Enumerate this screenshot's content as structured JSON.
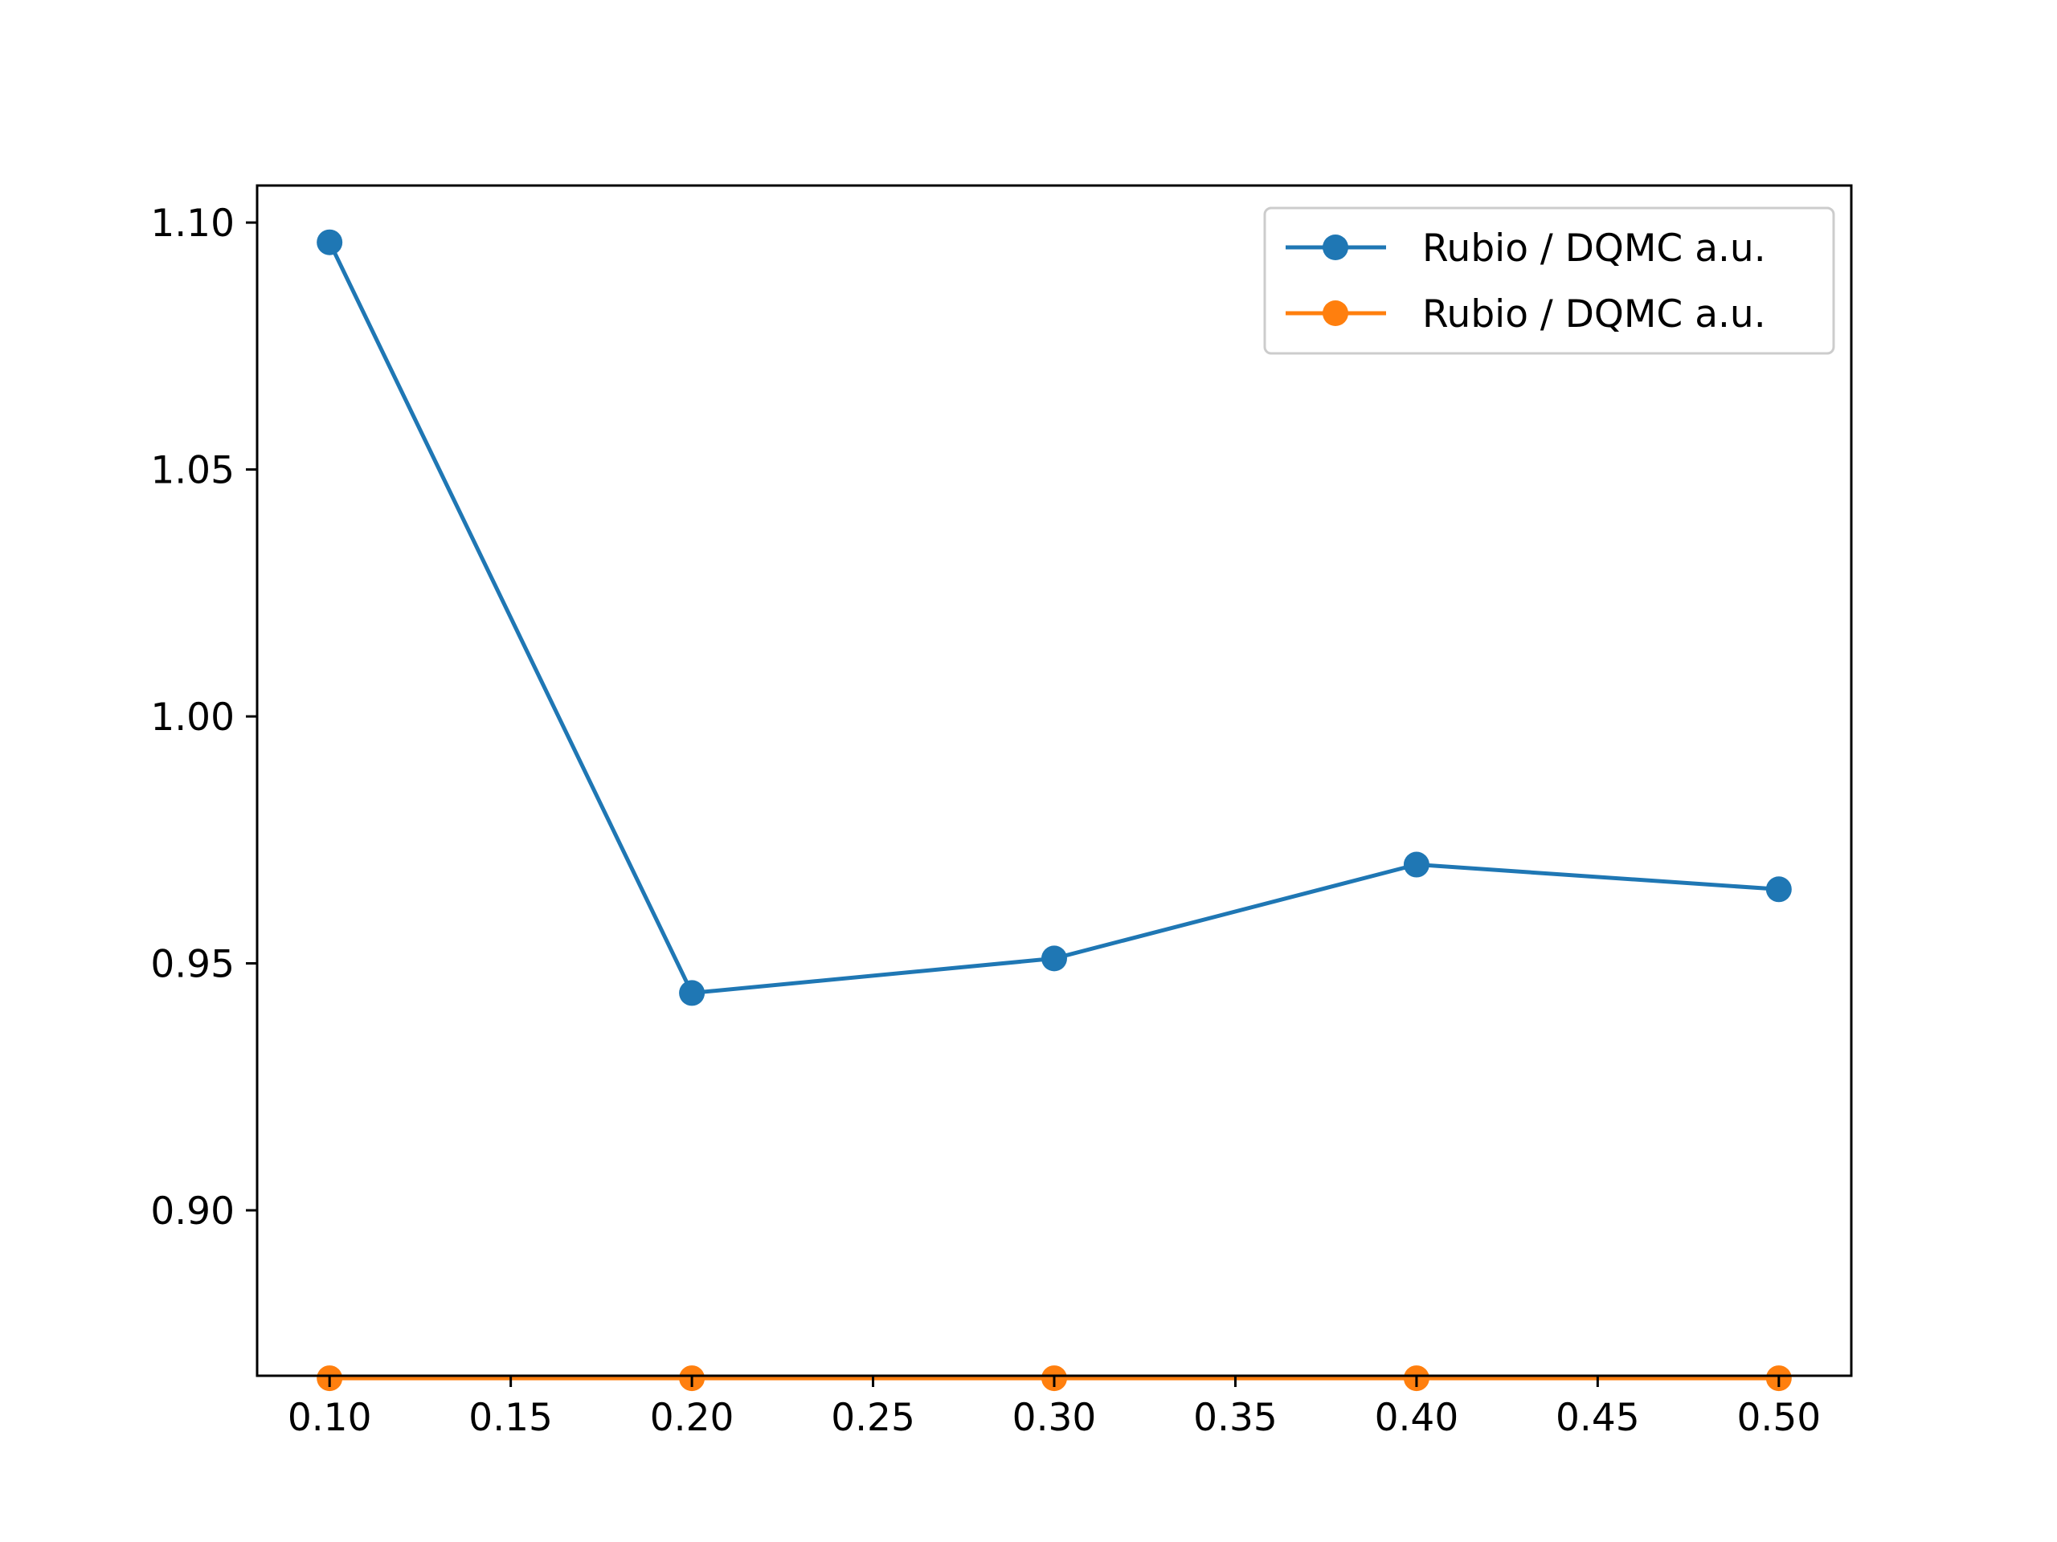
{
  "chart_data": {
    "type": "line",
    "title": "",
    "xlabel": "",
    "ylabel": "",
    "xlim": [
      0.08,
      0.52
    ],
    "ylim": [
      0.8665,
      1.1075
    ],
    "xticks": [
      0.1,
      0.15,
      0.2,
      0.25,
      0.3,
      0.35,
      0.4,
      0.45,
      0.5
    ],
    "xtick_labels": [
      "0.10",
      "0.15",
      "0.20",
      "0.25",
      "0.30",
      "0.35",
      "0.40",
      "0.45",
      "0.50"
    ],
    "yticks": [
      0.9,
      0.95,
      1.0,
      1.05,
      1.1
    ],
    "ytick_labels": [
      "0.90",
      "0.95",
      "1.00",
      "1.05",
      "1.10"
    ],
    "grid": false,
    "legend_position": "top-right",
    "x": [
      0.1,
      0.2,
      0.3,
      0.4,
      0.5
    ],
    "series": [
      {
        "name": "Rubio / DQMC a.u.",
        "color": "#1f77b4",
        "marker": "circle",
        "values": [
          1.096,
          0.944,
          0.951,
          0.97,
          0.965
        ]
      },
      {
        "name": "Rubio / DQMC a.u.",
        "color": "#ff7f0e",
        "marker": "circle",
        "values": [
          0.866,
          0.866,
          0.866,
          0.866,
          0.866
        ]
      }
    ]
  }
}
